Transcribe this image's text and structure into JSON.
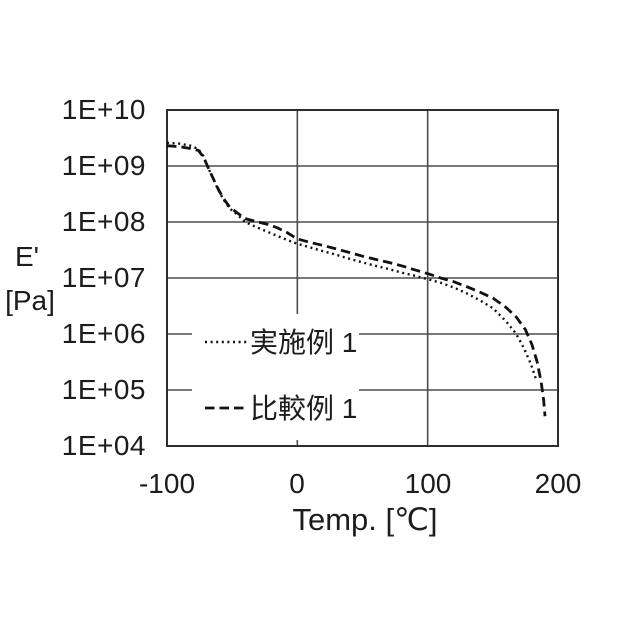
{
  "figure": {
    "y_axis": {
      "label_line1": "E'",
      "label_line2": "[Pa]",
      "ticks": [
        "1E+10",
        "1E+09",
        "1E+08",
        "1E+07",
        "1E+06",
        "1E+05",
        "1E+04"
      ]
    },
    "x_axis": {
      "title": "Temp. [℃]",
      "ticks": [
        "-100",
        "0",
        "100",
        "200"
      ]
    },
    "legend": [
      {
        "label": "実施例 1",
        "style": "dotted"
      },
      {
        "label": "比較例 1",
        "style": "dashed"
      }
    ]
  },
  "colors": {
    "background": "#ffffff",
    "border": "#2e2e2e",
    "grid": "#4d4d4d",
    "line": "#111111",
    "text": "#1c1c1c"
  },
  "chart_data": {
    "type": "line",
    "title": "",
    "xlabel": "Temp. [℃]",
    "ylabel": "E' [Pa]",
    "xlim": [
      -100,
      200
    ],
    "ylim": [
      10000.0,
      10000000000.0
    ],
    "y_scale": "log",
    "x_ticks": [
      -100,
      0,
      100,
      200
    ],
    "x_gridlines": [
      0,
      100
    ],
    "y_ticks": [
      "1E+10",
      "1E+09",
      "1E+08",
      "1E+07",
      "1E+06",
      "1E+05",
      "1E+04"
    ],
    "grid": true,
    "legend_position": "inside-lower-left",
    "series": [
      {
        "name": "実施例1",
        "line_style": "dotted",
        "color": "#111111",
        "points": [
          [
            -100,
            2600000000.0
          ],
          [
            -90,
            2500000000.0
          ],
          [
            -82,
            2300000000.0
          ],
          [
            -76,
            2000000000.0
          ],
          [
            -72,
            1500000000.0
          ],
          [
            -69,
            1000000000.0
          ],
          [
            -65,
            620000000.0
          ],
          [
            -61,
            390000000.0
          ],
          [
            -57,
            260000000.0
          ],
          [
            -52,
            175000000.0
          ],
          [
            -46,
            135000000.0
          ],
          [
            -40,
            100000000.0
          ],
          [
            -33,
            84000000.0
          ],
          [
            -25,
            70000000.0
          ],
          [
            -15,
            56000000.0
          ],
          [
            -5,
            45000000.0
          ],
          [
            0,
            41000000.0
          ],
          [
            10,
            35000000.0
          ],
          [
            20,
            30000000.0
          ],
          [
            30,
            26000000.0
          ],
          [
            40,
            22000000.0
          ],
          [
            50,
            19000000.0
          ],
          [
            60,
            16500000.0
          ],
          [
            70,
            14500000.0
          ],
          [
            80,
            12500000.0
          ],
          [
            90,
            11000000.0
          ],
          [
            100,
            9500000.0
          ],
          [
            110,
            8200000.0
          ],
          [
            120,
            6800000.0
          ],
          [
            130,
            5300000.0
          ],
          [
            140,
            4000000.0
          ],
          [
            150,
            2900000.0
          ],
          [
            160,
            1700000.0
          ],
          [
            168,
            1000000.0
          ],
          [
            174,
            550000.0
          ],
          [
            179,
            300000.0
          ],
          [
            183,
            160000.0
          ]
        ]
      },
      {
        "name": "比較例1",
        "line_style": "dashed",
        "color": "#111111",
        "points": [
          [
            -100,
            2300000000.0
          ],
          [
            -90,
            2200000000.0
          ],
          [
            -82,
            2050000000.0
          ],
          [
            -76,
            1900000000.0
          ],
          [
            -72,
            1450000000.0
          ],
          [
            -69,
            1000000000.0
          ],
          [
            -65,
            630000000.0
          ],
          [
            -61,
            400000000.0
          ],
          [
            -57,
            270000000.0
          ],
          [
            -52,
            185000000.0
          ],
          [
            -46,
            145000000.0
          ],
          [
            -40,
            115000000.0
          ],
          [
            -30,
            100000000.0
          ],
          [
            -22,
            90000000.0
          ],
          [
            -15,
            78000000.0
          ],
          [
            -8,
            65000000.0
          ],
          [
            0,
            50000000.0
          ],
          [
            10,
            43000000.0
          ],
          [
            20,
            38000000.0
          ],
          [
            30,
            33000000.0
          ],
          [
            40,
            28500000.0
          ],
          [
            50,
            24500000.0
          ],
          [
            60,
            21500000.0
          ],
          [
            70,
            19000000.0
          ],
          [
            80,
            16500000.0
          ],
          [
            90,
            14000000.0
          ],
          [
            100,
            12000000.0
          ],
          [
            110,
            10000000.0
          ],
          [
            120,
            8600000.0
          ],
          [
            130,
            7000000.0
          ],
          [
            140,
            5600000.0
          ],
          [
            150,
            4400000.0
          ],
          [
            160,
            3000000.0
          ],
          [
            168,
            2000000.0
          ],
          [
            175,
            1200000.0
          ],
          [
            180,
            650000.0
          ],
          [
            184,
            320000.0
          ],
          [
            187,
            140000.0
          ],
          [
            189,
            65000.0
          ],
          [
            190,
            34000.0
          ]
        ]
      }
    ]
  }
}
